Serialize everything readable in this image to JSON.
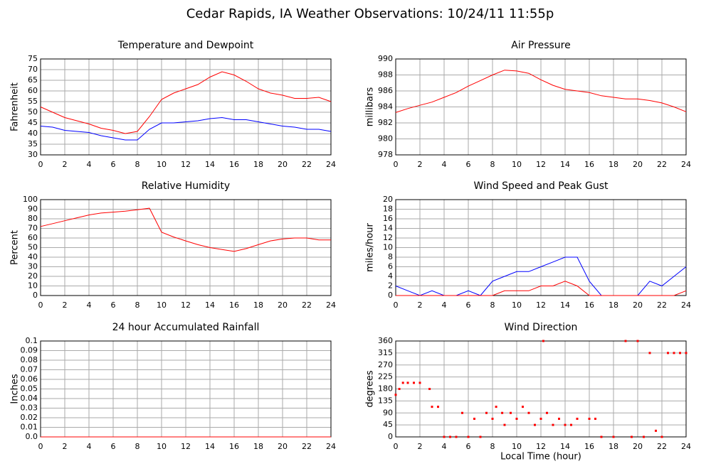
{
  "title": "Cedar Rapids, IA Weather Observations: 10/24/11 11:55p",
  "chart_data": [
    {
      "type": "line",
      "title": "Temperature and Dewpoint",
      "ylabel": "Fahrenheit",
      "x": [
        0,
        1,
        2,
        3,
        4,
        5,
        6,
        7,
        8,
        9,
        10,
        11,
        12,
        13,
        14,
        15,
        16,
        17,
        18,
        19,
        20,
        21,
        22,
        23,
        24
      ],
      "series": [
        {
          "color": "#ff0000",
          "values": [
            52.5,
            50,
            47.5,
            46,
            44.5,
            42.5,
            41.5,
            40,
            41,
            48,
            56,
            59,
            61,
            63,
            66.5,
            69,
            67.5,
            64.5,
            61,
            59,
            58,
            56.5,
            56.5,
            57,
            55
          ]
        },
        {
          "color": "#0000ff",
          "values": [
            43.5,
            43,
            41.5,
            41,
            40.5,
            39,
            38,
            37,
            37,
            42,
            45,
            45,
            45.5,
            46,
            47,
            47.5,
            46.5,
            46.5,
            45.5,
            44.5,
            43.5,
            43,
            42,
            42,
            41
          ]
        }
      ],
      "xlim": [
        0,
        24
      ],
      "xticks": [
        0,
        2,
        4,
        6,
        8,
        10,
        12,
        14,
        16,
        18,
        20,
        22,
        24
      ],
      "ylim": [
        30,
        75
      ],
      "yticks": [
        30,
        35,
        40,
        45,
        50,
        55,
        60,
        65,
        70,
        75
      ],
      "grid": true
    },
    {
      "type": "line",
      "title": "Air Pressure",
      "ylabel": "millibars",
      "x": [
        0,
        1,
        2,
        3,
        4,
        5,
        6,
        7,
        8,
        9,
        10,
        11,
        12,
        13,
        14,
        15,
        16,
        17,
        18,
        19,
        20,
        21,
        22,
        23,
        24
      ],
      "series": [
        {
          "color": "#ff0000",
          "values": [
            983.3,
            983.8,
            984.2,
            984.6,
            985.2,
            985.8,
            986.6,
            987.3,
            988,
            988.6,
            988.5,
            988.2,
            987.4,
            986.7,
            986.2,
            986,
            985.8,
            985.4,
            985.2,
            985,
            985,
            984.8,
            984.5,
            984,
            983.4
          ]
        }
      ],
      "xlim": [
        0,
        24
      ],
      "xticks": [
        0,
        2,
        4,
        6,
        8,
        10,
        12,
        14,
        16,
        18,
        20,
        22,
        24
      ],
      "ylim": [
        978,
        990
      ],
      "yticks": [
        978,
        980,
        982,
        984,
        986,
        988,
        990
      ],
      "grid": true
    },
    {
      "type": "line",
      "title": "Relative Humidity",
      "ylabel": "Percent",
      "x": [
        0,
        1,
        2,
        3,
        4,
        5,
        6,
        7,
        8,
        9,
        10,
        11,
        12,
        13,
        14,
        15,
        16,
        17,
        18,
        19,
        20,
        21,
        22,
        23,
        24
      ],
      "series": [
        {
          "color": "#ff0000",
          "values": [
            72,
            75,
            78,
            81,
            84,
            86,
            87,
            88,
            89.5,
            91,
            66,
            61,
            57,
            53,
            50,
            48,
            46,
            49,
            53,
            57,
            59,
            60,
            60,
            58,
            58
          ]
        }
      ],
      "xlim": [
        0,
        24
      ],
      "xticks": [
        0,
        2,
        4,
        6,
        8,
        10,
        12,
        14,
        16,
        18,
        20,
        22,
        24
      ],
      "ylim": [
        0,
        100
      ],
      "yticks": [
        0,
        10,
        20,
        30,
        40,
        50,
        60,
        70,
        80,
        90,
        100
      ],
      "grid": true
    },
    {
      "type": "line",
      "title": "Wind Speed and Peak Gust",
      "ylabel": "miles/hour",
      "x": [
        0,
        1,
        2,
        3,
        4,
        5,
        6,
        7,
        8,
        9,
        10,
        11,
        12,
        13,
        14,
        15,
        16,
        17,
        18,
        19,
        20,
        21,
        22,
        23,
        24
      ],
      "series": [
        {
          "color": "#0000ff",
          "values": [
            2,
            1,
            0,
            1,
            0,
            0,
            1,
            0,
            3,
            4,
            5,
            5,
            6,
            7,
            8,
            8,
            3,
            0,
            0,
            0,
            0,
            3,
            2,
            4,
            6
          ]
        },
        {
          "color": "#ff0000",
          "values": [
            0,
            0,
            0,
            0,
            0,
            0,
            0,
            0,
            0,
            1,
            1,
            1,
            2,
            2,
            3,
            2,
            0,
            0,
            0,
            0,
            0,
            0,
            0,
            0,
            1
          ]
        }
      ],
      "xlim": [
        0,
        24
      ],
      "xticks": [
        0,
        2,
        4,
        6,
        8,
        10,
        12,
        14,
        16,
        18,
        20,
        22,
        24
      ],
      "ylim": [
        0,
        20
      ],
      "yticks": [
        0,
        2,
        4,
        6,
        8,
        10,
        12,
        14,
        16,
        18,
        20
      ],
      "grid": true
    },
    {
      "type": "line",
      "title": "24 hour Accumulated Rainfall",
      "ylabel": "Inches",
      "x": [
        0,
        1,
        2,
        3,
        4,
        5,
        6,
        7,
        8,
        9,
        10,
        11,
        12,
        13,
        14,
        15,
        16,
        17,
        18,
        19,
        20,
        21,
        22,
        23,
        24
      ],
      "series": [
        {
          "color": "#ff0000",
          "values": [
            0,
            0,
            0,
            0,
            0,
            0,
            0,
            0,
            0,
            0,
            0,
            0,
            0,
            0,
            0,
            0,
            0,
            0,
            0,
            0,
            0,
            0,
            0,
            0,
            0
          ]
        }
      ],
      "xlim": [
        0,
        24
      ],
      "xticks": [
        0,
        2,
        4,
        6,
        8,
        10,
        12,
        14,
        16,
        18,
        20,
        22,
        24
      ],
      "ylim": [
        0,
        0.1
      ],
      "yticks": [
        {
          "value": 0,
          "label": "0.0"
        },
        0.01,
        0.02,
        0.03,
        0.04,
        0.05,
        0.06,
        0.07,
        0.08,
        0.09,
        0.1
      ],
      "grid": true
    },
    {
      "type": "scatter",
      "title": "Wind Direction",
      "ylabel": "degrees",
      "xlabel": "Local Time (hour)",
      "x": [
        0,
        0.3,
        0.6,
        1,
        1.5,
        2,
        2.8,
        3,
        3.5,
        4,
        4.5,
        5,
        5.5,
        6,
        6.5,
        7,
        7.5,
        8,
        8.3,
        8.8,
        9,
        9.5,
        10,
        10.5,
        11,
        11.5,
        12,
        12.2,
        12.5,
        13,
        13.5,
        14,
        14.5,
        15,
        16,
        16.5,
        17,
        18,
        19,
        19.5,
        20,
        20.5,
        21,
        21.5,
        22,
        22.5,
        23,
        23.5,
        24
      ],
      "values": [
        158,
        180,
        203,
        203,
        203,
        203,
        180,
        113,
        113,
        0,
        0,
        0,
        90,
        0,
        68,
        0,
        90,
        68,
        113,
        90,
        45,
        90,
        68,
        113,
        90,
        45,
        68,
        360,
        90,
        45,
        68,
        45,
        45,
        68,
        68,
        68,
        0,
        0,
        360,
        0,
        360,
        0,
        315,
        23,
        0,
        315,
        315,
        315,
        315
      ],
      "color": "#ff0000",
      "xlim": [
        0,
        24
      ],
      "xticks": [
        0,
        2,
        4,
        6,
        8,
        10,
        12,
        14,
        16,
        18,
        20,
        22,
        24
      ],
      "ylim": [
        0,
        360
      ],
      "yticks": [
        0,
        45,
        90,
        135,
        180,
        225,
        270,
        315,
        360
      ],
      "grid": true
    }
  ]
}
